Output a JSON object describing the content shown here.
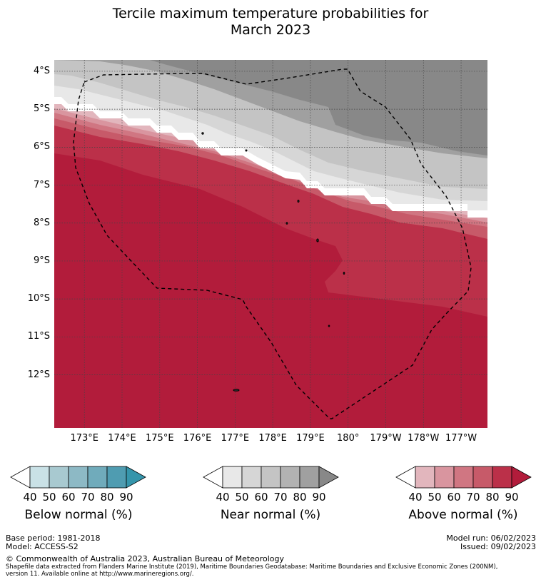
{
  "title_line1": "Tercile maximum temperature probabilities for",
  "title_line2": "March 2023",
  "map": {
    "lat_labels": [
      "4°S",
      "5°S",
      "6°S",
      "7°S",
      "8°S",
      "9°S",
      "10°S",
      "11°S",
      "12°S"
    ],
    "lon_labels": [
      "173°E",
      "174°E",
      "175°E",
      "176°E",
      "177°E",
      "178°E",
      "179°E",
      "180°",
      "179°W",
      "178°W",
      "177°W"
    ],
    "extent": {
      "lon_min": 172.2,
      "lon_max": 183.7,
      "lat_north": -3.7,
      "lat_south": -13.4
    },
    "boundary_line": "dashed EEZ outline"
  },
  "colorbars": [
    {
      "name": "Below normal (%)",
      "ticks": [
        "40",
        "50",
        "60",
        "70",
        "80",
        "90"
      ],
      "colors": [
        "#ffffff",
        "#c9e1e6",
        "#a8c9d0",
        "#8db9c5",
        "#70abbb",
        "#4f9cb1",
        "#3595ab"
      ]
    },
    {
      "name": "Near normal (%)",
      "ticks": [
        "40",
        "50",
        "60",
        "70",
        "80",
        "90"
      ],
      "colors": [
        "#ffffff",
        "#e8e8e8",
        "#d6d6d6",
        "#c4c4c4",
        "#b2b2b2",
        "#a0a0a0",
        "#888888"
      ]
    },
    {
      "name": "Above normal (%)",
      "ticks": [
        "40",
        "50",
        "60",
        "70",
        "80",
        "90"
      ],
      "colors": [
        "#ffffff",
        "#e2b6bd",
        "#d9959f",
        "#d07682",
        "#c75a69",
        "#bb3049",
        "#b21c3b"
      ]
    }
  ],
  "footer": {
    "base_period": "Base period: 1981-2018",
    "model": "Model: ACCESS-S2",
    "model_run": "Model run: 06/02/2023",
    "issued": "Issued: 09/02/2023",
    "copyright": "© Commonwealth of Australia 2023, Australian Bureau of Meteorology",
    "shapefile1": "Shapefile data extracted from Flanders Marine Institute (2019), Maritime Boundaries Geodatabase: Maritime Boundaries and Exclusive Economic Zones (200NM),",
    "shapefile2": "version 11. Available online at http://www.marineregions.org/."
  }
}
